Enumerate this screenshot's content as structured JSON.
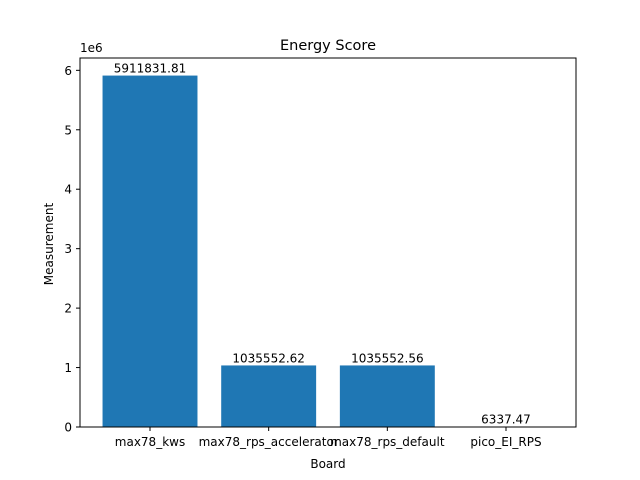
{
  "chart_data": {
    "type": "bar",
    "title": "Energy Score",
    "xlabel": "Board",
    "ylabel": "Measurement",
    "offset_label": "1e6",
    "categories": [
      "max78_kws",
      "max78_rps_accelerator",
      "max78_rps_default",
      "pico_EI_RPS"
    ],
    "values": [
      5911831.81,
      1035552.62,
      1035552.56,
      6337.47
    ],
    "value_labels": [
      "5911831.81",
      "1035552.62",
      "1035552.56",
      "6337.47"
    ],
    "ylim": [
      0,
      6207423.4
    ],
    "yticks": [
      0,
      1000000,
      2000000,
      3000000,
      4000000,
      5000000,
      6000000
    ],
    "ytick_labels": [
      "0",
      "1",
      "2",
      "3",
      "4",
      "5",
      "6"
    ],
    "grid": false,
    "bar_color": "#1f77b4"
  }
}
